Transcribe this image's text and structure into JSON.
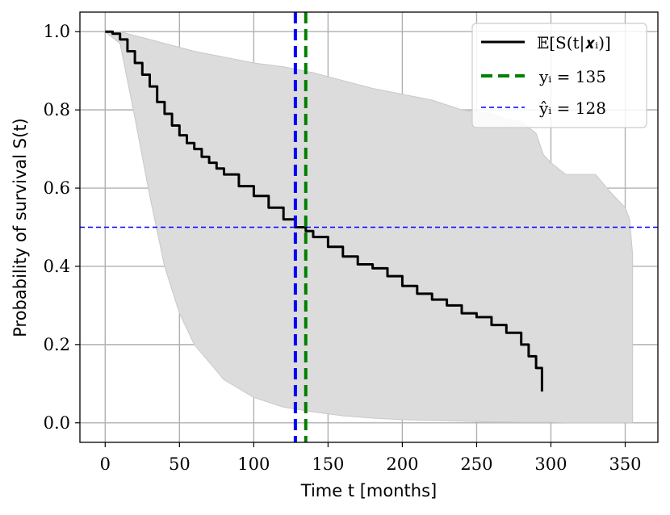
{
  "chart_data": {
    "type": "line",
    "title": "",
    "xlabel": "Time t [months]",
    "ylabel": "Probability of survival S(t)",
    "xlim": [
      -17,
      372
    ],
    "ylim": [
      -0.05,
      1.05
    ],
    "xticks": [
      0,
      50,
      100,
      150,
      200,
      250,
      300,
      350
    ],
    "xtick_labels": [
      "0",
      "50",
      "100",
      "150",
      "200",
      "250",
      "300",
      "350"
    ],
    "yticks": [
      0.0,
      0.2,
      0.4,
      0.6,
      0.8,
      1.0
    ],
    "ytick_labels": [
      "0.0",
      "0.2",
      "0.4",
      "0.6",
      "0.8",
      "1.0"
    ],
    "grid": true,
    "legend_position": "top-right",
    "series": [
      {
        "name": "E[S(t|x_i)]",
        "style": "solid",
        "color": "#000000",
        "x": [
          0,
          5,
          10,
          15,
          20,
          25,
          30,
          35,
          40,
          45,
          50,
          55,
          60,
          65,
          70,
          75,
          80,
          90,
          100,
          110,
          120,
          128,
          135,
          140,
          150,
          160,
          170,
          180,
          190,
          200,
          210,
          220,
          230,
          240,
          250,
          260,
          270,
          280,
          285,
          290,
          294
        ],
        "y": [
          1.0,
          0.995,
          0.98,
          0.95,
          0.92,
          0.89,
          0.86,
          0.82,
          0.79,
          0.76,
          0.735,
          0.715,
          0.7,
          0.68,
          0.665,
          0.65,
          0.635,
          0.605,
          0.58,
          0.55,
          0.52,
          0.5,
          0.49,
          0.475,
          0.45,
          0.425,
          0.405,
          0.395,
          0.375,
          0.35,
          0.33,
          0.315,
          0.3,
          0.28,
          0.27,
          0.25,
          0.23,
          0.2,
          0.17,
          0.14,
          0.08
        ]
      }
    ],
    "band": {
      "name": "uncertainty",
      "color": "#dcdcdc",
      "x": [
        0,
        10,
        20,
        30,
        40,
        50,
        60,
        80,
        100,
        120,
        140,
        160,
        180,
        200,
        220,
        240,
        250,
        260,
        270,
        280,
        290,
        295,
        300,
        310,
        320,
        330,
        340,
        350,
        353,
        355
      ],
      "upper": [
        1.0,
        1.0,
        0.99,
        0.98,
        0.97,
        0.96,
        0.95,
        0.935,
        0.92,
        0.91,
        0.895,
        0.875,
        0.855,
        0.84,
        0.825,
        0.8,
        0.795,
        0.79,
        0.775,
        0.77,
        0.74,
        0.685,
        0.665,
        0.635,
        0.635,
        0.635,
        0.59,
        0.55,
        0.52,
        0.43
      ],
      "lower": [
        1.0,
        0.97,
        0.78,
        0.58,
        0.4,
        0.28,
        0.2,
        0.11,
        0.065,
        0.04,
        0.028,
        0.018,
        0.012,
        0.008,
        0.006,
        0.004,
        0.003,
        0.002,
        0.002,
        0.001,
        0.001,
        0.001,
        0.001,
        0.0,
        0.0,
        0.0,
        0.0,
        0.0,
        0.0,
        0.0
      ]
    },
    "vlines": [
      {
        "label": "y_i = 135",
        "x": 135,
        "color": "#008000",
        "style": "thick-dashed"
      },
      {
        "label": "ŷ_i = 128",
        "x": 128,
        "color": "#0000ff",
        "style": "thick-dashed"
      }
    ],
    "hline": {
      "y": 0.5,
      "color": "#0000ff",
      "style": "thin-dashed"
    }
  },
  "legend": {
    "items": [
      {
        "label": "𝔼[S(t|𝒙ᵢ)]",
        "color": "#000000",
        "style": "solid"
      },
      {
        "label": "yᵢ = 135",
        "color": "#008000",
        "style": "dashed"
      },
      {
        "label": "ŷᵢ = 128",
        "color": "#0000ff",
        "style": "thin-dashed"
      }
    ]
  }
}
